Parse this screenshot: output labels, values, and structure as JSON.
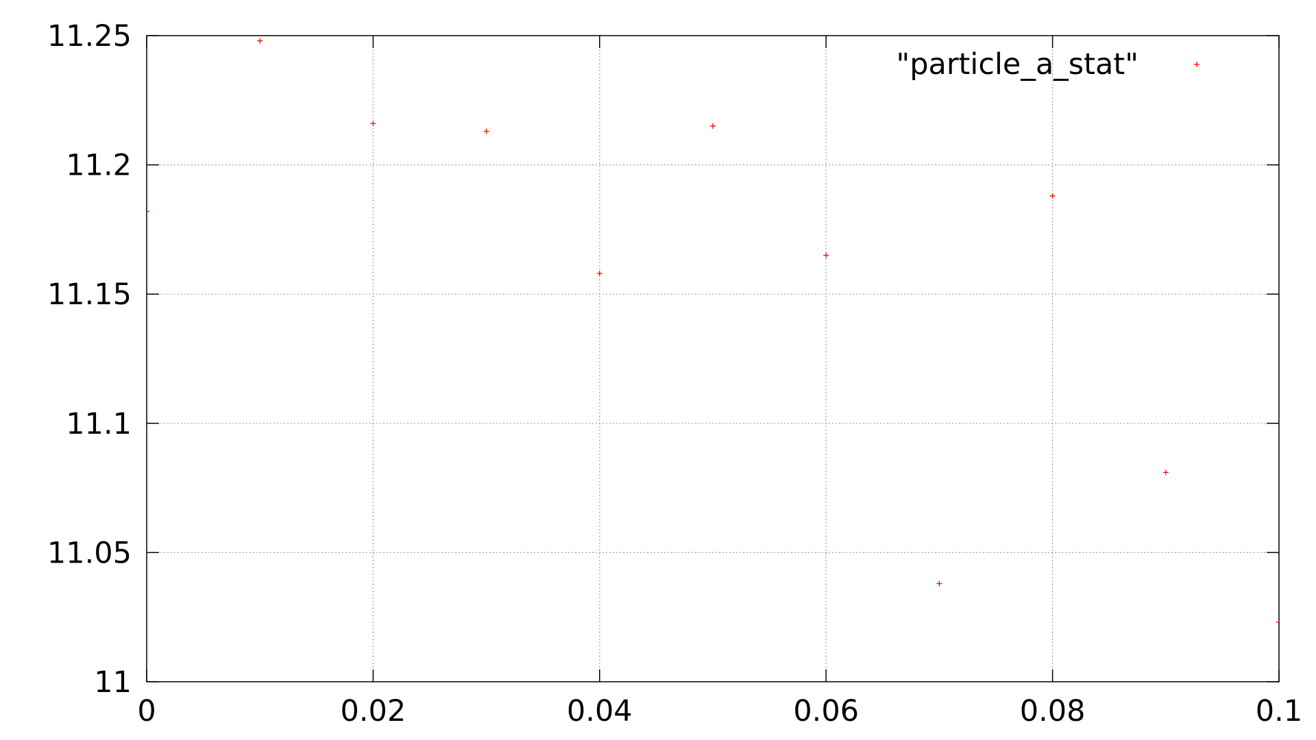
{
  "chart_data": {
    "type": "scatter",
    "title": "",
    "xlabel": "",
    "ylabel": "",
    "xlim": [
      0,
      0.1
    ],
    "ylim": [
      11,
      11.25
    ],
    "x_ticks": [
      0,
      0.02,
      0.04,
      0.06,
      0.08,
      0.1
    ],
    "x_tick_labels": [
      "0",
      "0.02",
      "0.04",
      "0.06",
      "0.08",
      "0.1"
    ],
    "y_ticks": [
      11,
      11.05,
      11.1,
      11.15,
      11.2,
      11.25
    ],
    "y_tick_labels": [
      "11",
      "11.05",
      "11.1",
      "11.15",
      "11.2",
      "11.25"
    ],
    "grid": true,
    "legend_position": "top-right",
    "series": [
      {
        "name": "\"particle_a_stat\"",
        "color": "#ff0000",
        "marker": "plus",
        "x": [
          0,
          0.01,
          0.02,
          0.03,
          0.04,
          0.05,
          0.06,
          0.07,
          0.08,
          0.09,
          0.1
        ],
        "y": [
          11.182,
          11.248,
          11.216,
          11.213,
          11.158,
          11.215,
          11.165,
          11.038,
          11.188,
          11.081,
          11.023
        ]
      }
    ]
  }
}
